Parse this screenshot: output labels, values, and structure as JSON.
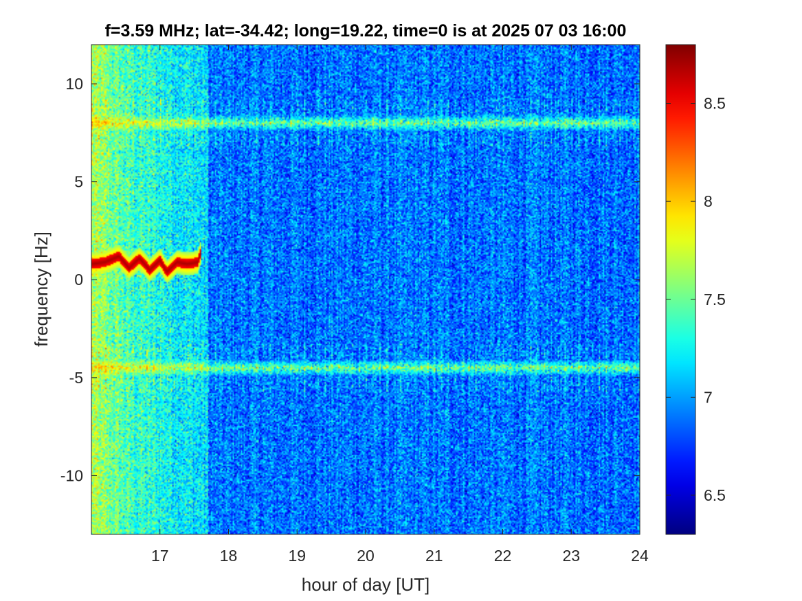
{
  "chart_data": {
    "type": "heatmap",
    "title": "f=3.59 MHz;  lat=-34.42; long=19.22, time=0 is at 2025 07 03 16:00",
    "xlabel": "hour of day [UT]",
    "ylabel": "frequency [Hz]",
    "xlim": [
      16.0,
      24.0
    ],
    "ylim": [
      -13.0,
      12.0
    ],
    "x_ticks": [
      17,
      18,
      19,
      20,
      21,
      22,
      23,
      24
    ],
    "x_tick_labels": [
      "17",
      "18",
      "19",
      "20",
      "21",
      "22",
      "23",
      "24"
    ],
    "y_ticks": [
      -10,
      -5,
      0,
      5,
      10
    ],
    "y_tick_labels": [
      "-10",
      "-5",
      "0",
      "5",
      "10"
    ],
    "colorbar": {
      "colormap": "jet",
      "clim": [
        6.3,
        8.8
      ],
      "ticks": [
        6.5,
        7,
        7.5,
        8,
        8.5
      ],
      "tick_labels": [
        "6.5",
        "7",
        "7.5",
        "8",
        "8.5"
      ]
    },
    "grid": false,
    "features": {
      "background_level_early": 7.5,
      "background_level_late": 6.9,
      "transition_hour": 17.7,
      "horizontal_bands_hz": [
        8.0,
        -4.5
      ],
      "band_level": 8.5,
      "doppler_trace": {
        "hours": [
          16.0,
          16.2,
          16.4,
          16.55,
          16.7,
          16.85,
          17.0,
          17.1,
          17.25,
          17.4,
          17.55,
          17.6
        ],
        "freq_hz": [
          0.8,
          0.9,
          1.2,
          0.6,
          1.1,
          0.5,
          1.0,
          0.4,
          0.9,
          0.8,
          0.9,
          1.4
        ],
        "level": 8.7
      }
    }
  }
}
